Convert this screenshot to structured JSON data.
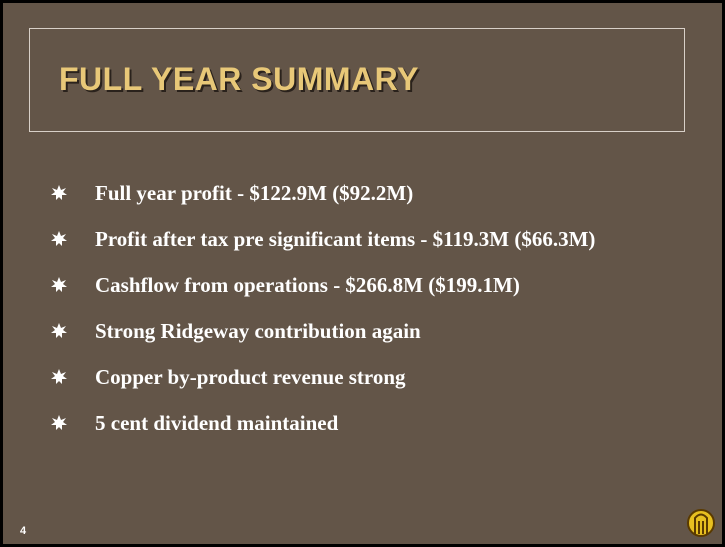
{
  "header": {
    "title": "FULL YEAR SUMMARY"
  },
  "bullets": [
    "Full year profit - $122.9M ($92.2M)",
    "Profit after tax pre significant items - $119.3M ($66.3M)",
    "Cashflow from operations - $266.8M ($199.1M)",
    "Strong Ridgeway contribution again",
    "Copper by-product revenue strong",
    "5 cent dividend maintained"
  ],
  "footer": {
    "page_number": "4"
  }
}
